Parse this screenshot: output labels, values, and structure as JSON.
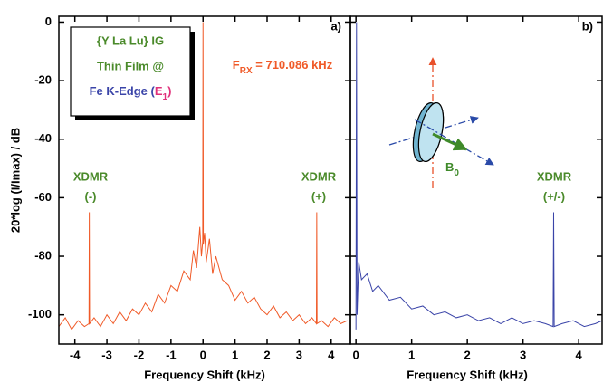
{
  "chart_data": [
    {
      "type": "line",
      "panel_label": "a)",
      "xlabel": "Frequency Shift (kHz)",
      "ylabel": "20*log (I/Imax)  / dB",
      "xlim": [
        -4.5,
        4.6
      ],
      "ylim": [
        -110,
        2
      ],
      "xticks": [
        -4,
        -3,
        -2,
        -1,
        0,
        1,
        2,
        3,
        4
      ],
      "yticks": [
        0,
        -20,
        -40,
        -60,
        -80,
        -100
      ],
      "inset_lines": [
        "{Y La Lu} IG",
        "Thin Film @"
      ],
      "inset_last": [
        "Fe K-Edge (",
        "E",
        "1",
        ")"
      ],
      "frequency_label": [
        "F",
        "RX",
        " = 710.086 kHz"
      ],
      "annotations": [
        "XDMR",
        "(-)",
        "XDMR",
        "(+)"
      ],
      "series": [
        {
          "color": "#f05a28",
          "x": [
            -4.5,
            -4.3,
            -4.1,
            -3.9,
            -3.7,
            -3.56,
            -3.55,
            -3.54,
            -3.4,
            -3.2,
            -3.0,
            -2.8,
            -2.6,
            -2.4,
            -2.2,
            -2.0,
            -1.8,
            -1.6,
            -1.4,
            -1.2,
            -1.0,
            -0.8,
            -0.6,
            -0.4,
            -0.3,
            -0.2,
            -0.1,
            -0.05,
            -0.01,
            0,
            0.01,
            0.05,
            0.1,
            0.2,
            0.3,
            0.4,
            0.6,
            0.8,
            1.0,
            1.2,
            1.4,
            1.6,
            1.8,
            2.0,
            2.2,
            2.4,
            2.6,
            2.8,
            3.0,
            3.2,
            3.4,
            3.54,
            3.55,
            3.56,
            3.7,
            3.9,
            4.1,
            4.3,
            4.5
          ],
          "values": [
            -104,
            -101,
            -105,
            -102,
            -104,
            -103,
            -65,
            -103,
            -101,
            -104,
            -100,
            -103,
            -99,
            -102,
            -98,
            -100,
            -96,
            -99,
            -93,
            -96,
            -90,
            -92,
            -85,
            -88,
            -78,
            -84,
            -70,
            -80,
            -75,
            0,
            -76,
            -72,
            -82,
            -74,
            -86,
            -80,
            -88,
            -90,
            -95,
            -92,
            -96,
            -94,
            -98,
            -100,
            -97,
            -101,
            -99,
            -102,
            -100,
            -103,
            -101,
            -103,
            -65,
            -103,
            -102,
            -104,
            -101,
            -103,
            -102
          ]
        }
      ]
    },
    {
      "type": "line",
      "panel_label": "b)",
      "xlabel": "Frequency Shift (kHz)",
      "xlim": [
        -0.1,
        4.42
      ],
      "ylim": [
        -110,
        2
      ],
      "xticks": [
        0,
        1,
        2,
        3,
        4
      ],
      "yticks": [
        0,
        -20,
        -40,
        -60,
        -80,
        -100
      ],
      "annotations": [
        "XDMR",
        "(+/-)"
      ],
      "field_label": [
        "B",
        "0"
      ],
      "series": [
        {
          "color": "#3a44a8",
          "x": [
            0,
            0.01,
            0.02,
            0.05,
            0.1,
            0.2,
            0.3,
            0.4,
            0.6,
            0.8,
            1.0,
            1.2,
            1.4,
            1.6,
            1.8,
            2.0,
            2.2,
            2.4,
            2.6,
            2.8,
            3.0,
            3.2,
            3.4,
            3.54,
            3.55,
            3.56,
            3.7,
            3.9,
            4.1,
            4.3,
            4.42
          ],
          "values": [
            -105,
            0,
            -100,
            -82,
            -88,
            -86,
            -92,
            -90,
            -95,
            -94,
            -98,
            -97,
            -100,
            -99,
            -101,
            -100,
            -102,
            -101,
            -103,
            -101,
            -103,
            -102,
            -103,
            -104,
            -65,
            -104,
            -103,
            -102,
            -104,
            -103,
            -102
          ]
        }
      ]
    }
  ]
}
